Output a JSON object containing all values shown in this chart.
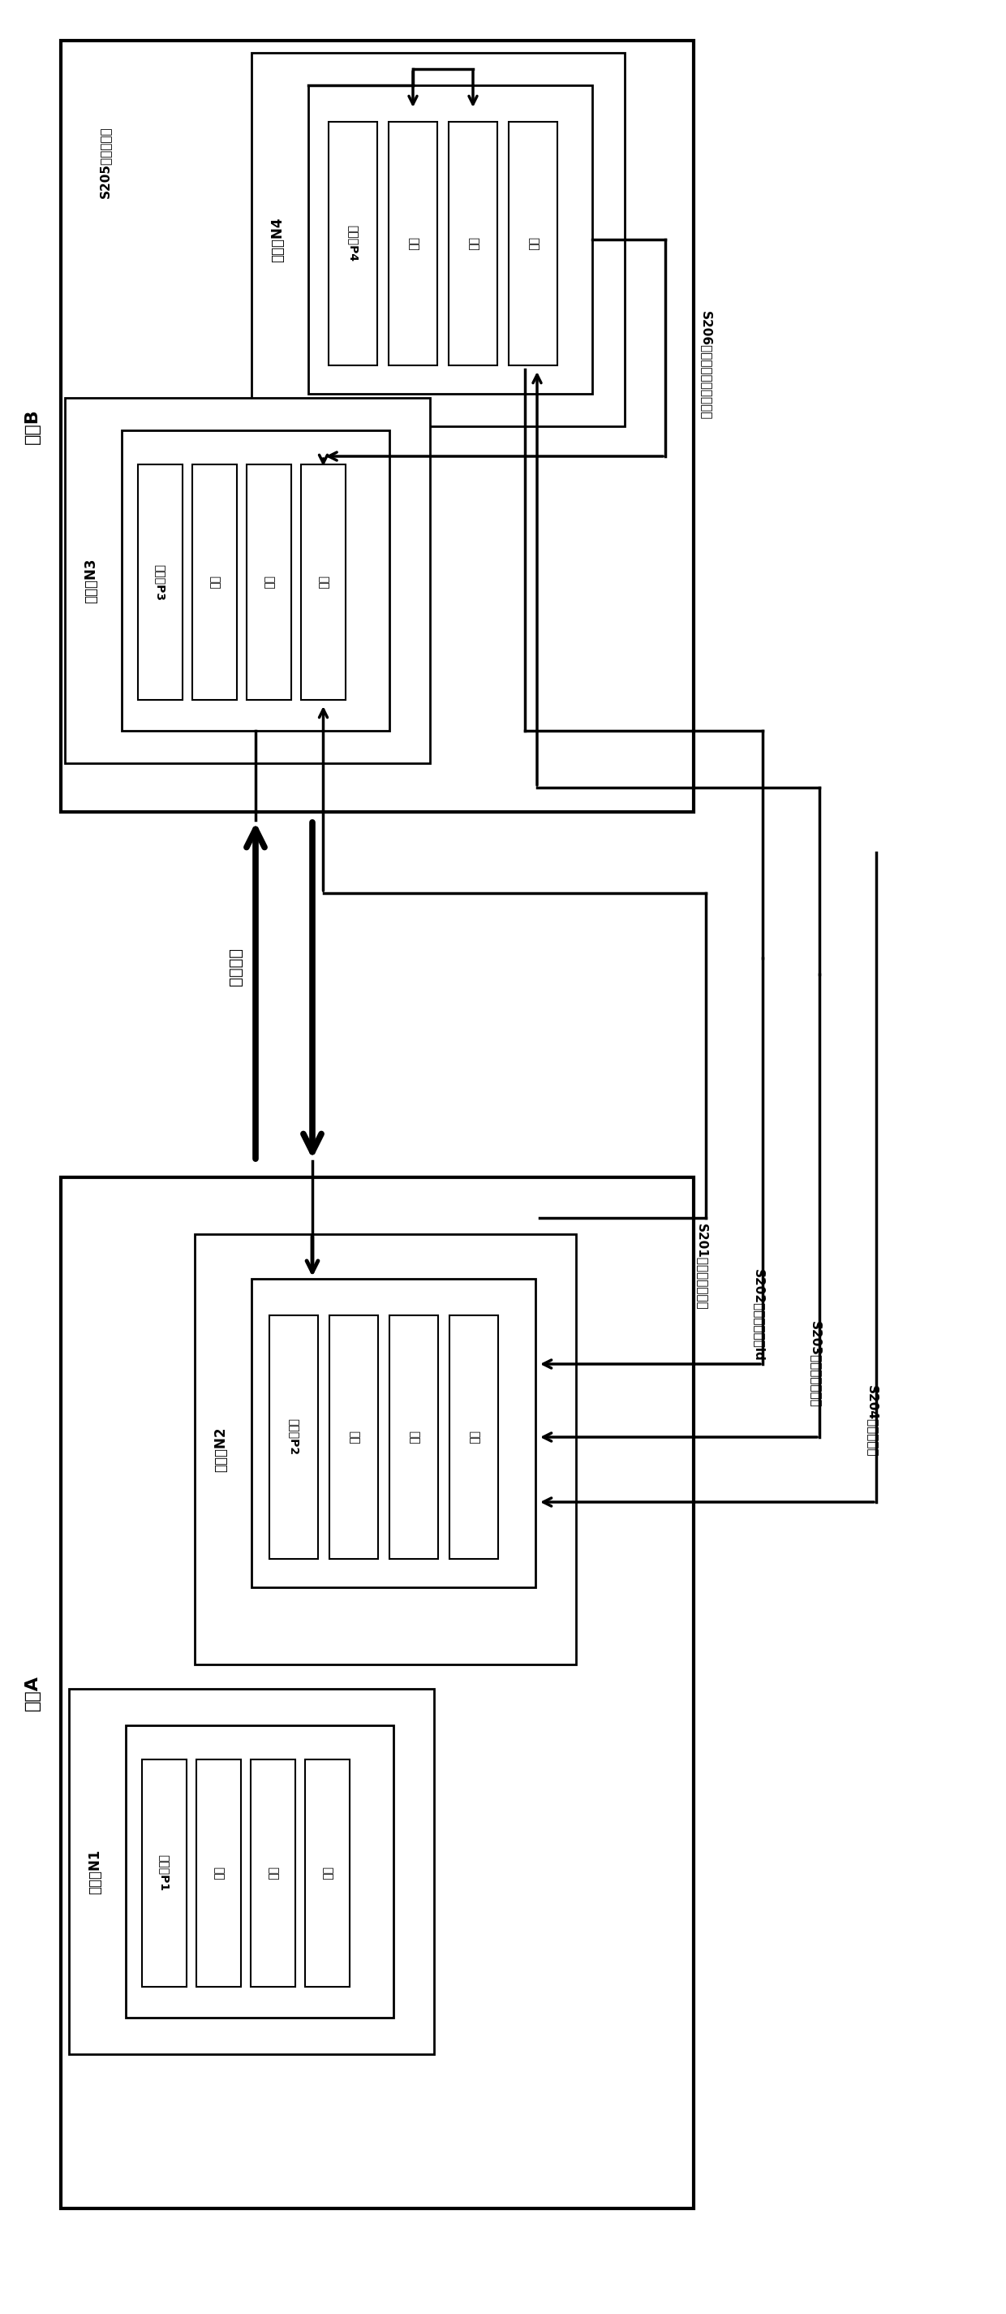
{
  "bg_color": "#ffffff",
  "slot_A_label": "插槽A",
  "slot_B_label": "插槽B",
  "slot_bus_label": "插槽总线",
  "node_N1_label": "容节点N1",
  "node_N2_label": "容节点N2",
  "node_N3_label": "容节点N3",
  "node_N4_label": "容节点N4",
  "proc_P1": "处理器P1",
  "proc_P2": "处理器P2",
  "proc_P3": "处理器P3",
  "proc_P4": "处理器P4",
  "mem": "内存",
  "cache": "缓存",
  "dir": "目录",
  "s201": "S201：发出读取请求",
  "s202": "S202：返回所有者id",
  "s203": "S203：发出读取请求",
  "s204": "S204：返回数据",
  "s205": "S205：写回内存",
  "s206": "S206：返回该地址中的数据"
}
